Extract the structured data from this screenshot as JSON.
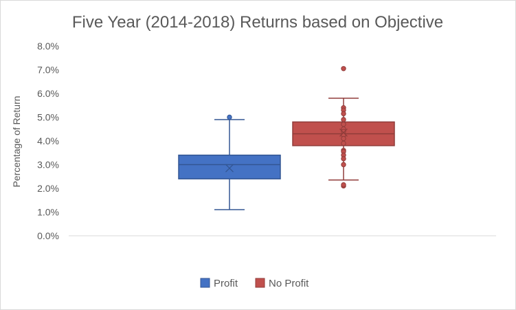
{
  "chart_data": {
    "type": "box",
    "title": "Five Year (2014-2018) Returns based on Objective",
    "ylabel": "Percentage of Return",
    "xlabel": "",
    "ylim": [
      0,
      8
    ],
    "yticks": [
      0,
      1,
      2,
      3,
      4,
      5,
      6,
      7,
      8
    ],
    "ytick_labels": [
      "0.0%",
      "1.0%",
      "2.0%",
      "3.0%",
      "4.0%",
      "5.0%",
      "6.0%",
      "7.0%",
      "8.0%"
    ],
    "grid": false,
    "legend_position": "bottom",
    "series": [
      {
        "name": "Profit",
        "color": "#4472c4",
        "whisker_low": 1.1,
        "q1": 2.4,
        "median": 3.0,
        "q3": 3.4,
        "whisker_high": 4.9,
        "mean": 2.85,
        "outliers": [
          5.0
        ]
      },
      {
        "name": "No Profit",
        "color": "#c0504d",
        "whisker_low": 2.35,
        "q1": 3.8,
        "median": 4.3,
        "q3": 4.8,
        "whisker_high": 5.8,
        "mean": 4.35,
        "inner_points": [
          5.4,
          5.3,
          5.15,
          4.9,
          4.7,
          4.5,
          4.4,
          4.25,
          4.1,
          3.9,
          3.6,
          3.55,
          3.4,
          3.25,
          3.0
        ],
        "outliers": [
          7.05,
          2.1,
          2.15
        ]
      }
    ]
  }
}
